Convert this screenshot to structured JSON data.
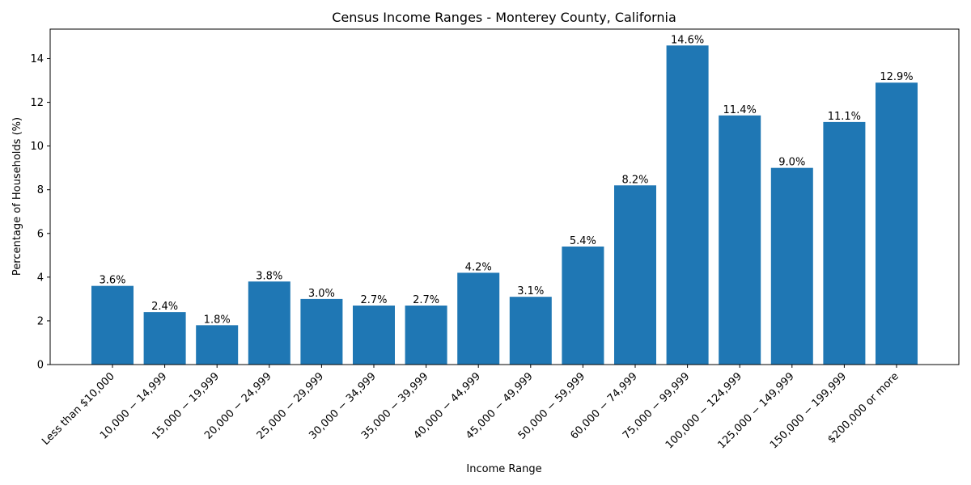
{
  "chart_data": {
    "type": "bar",
    "title": "Census Income Ranges - Monterey County, California",
    "xlabel": "Income Range",
    "ylabel": "Percentage of Households (%)",
    "ylim": [
      0,
      15.35
    ],
    "yticks": [
      0,
      2,
      4,
      6,
      8,
      10,
      12,
      14
    ],
    "grid": false,
    "categories": [
      "Less than $10,000",
      "10,000 − 14,999",
      "15,000 − 19,999",
      "20,000 − 24,999",
      "25,000 − 29,999",
      "30,000 − 34,999",
      "35,000 − 39,999",
      "40,000 − 44,999",
      "45,000 − 49,999",
      "50,000 − 59,999",
      "60,000 − 74,999",
      "75,000 − 99,999",
      "100,000 − 124,999",
      "125,000 − 149,999",
      "150,000 − 199,999",
      "$200,000 or more"
    ],
    "values": [
      3.6,
      2.4,
      1.8,
      3.8,
      3.0,
      2.7,
      2.7,
      4.2,
      3.1,
      5.4,
      8.2,
      14.6,
      11.4,
      9.0,
      11.1,
      12.9
    ],
    "value_labels": [
      "3.6%",
      "2.4%",
      "1.8%",
      "3.8%",
      "3.0%",
      "2.7%",
      "2.7%",
      "4.2%",
      "3.1%",
      "5.4%",
      "8.2%",
      "14.6%",
      "11.4%",
      "9.0%",
      "11.1%",
      "12.9%"
    ],
    "bar_color": "#1f77b4"
  }
}
